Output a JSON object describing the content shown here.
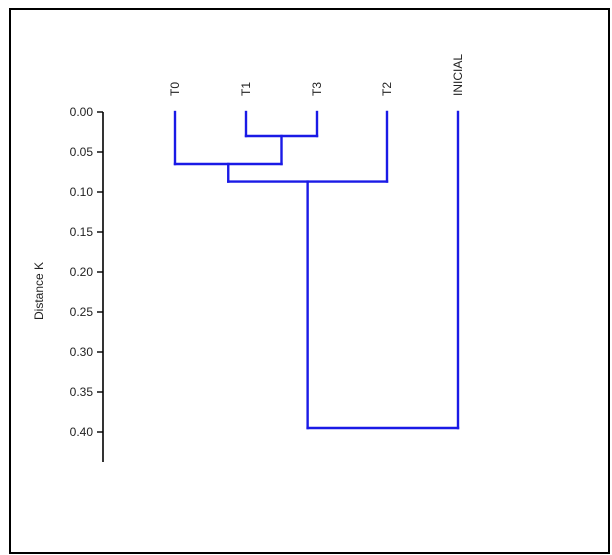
{
  "chart_data": {
    "type": "dendrogram",
    "ylabel": "Distance K",
    "ylim": [
      0,
      0.43
    ],
    "yticks": [
      "0.00",
      "0.05",
      "0.10",
      "0.15",
      "0.20",
      "0.25",
      "0.30",
      "0.35",
      "0.40"
    ],
    "leaves": [
      "T0",
      "T1",
      "T3",
      "T2",
      "INICIAL"
    ],
    "line_color": "#1a1ae6",
    "merges": [
      {
        "left": "T1",
        "right": "T3",
        "height": 0.03
      },
      {
        "left": "T0",
        "right": "T1+T3",
        "height": 0.065
      },
      {
        "left": "T0+T1+T3",
        "right": "T2",
        "height": 0.087
      },
      {
        "left": "T0+T1+T3+T2",
        "right": "INICIAL",
        "height": 0.395
      }
    ]
  }
}
